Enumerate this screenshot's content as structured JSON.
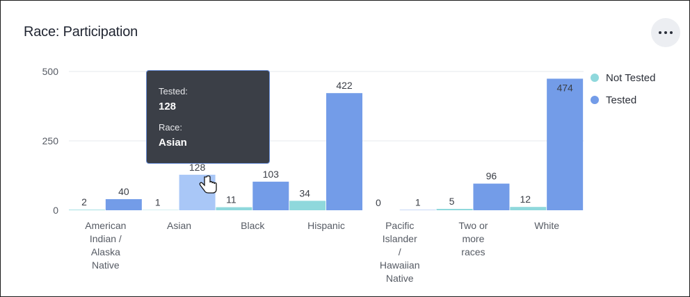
{
  "title": "Race: Participation",
  "more_icon": "more-horizontal-icon",
  "colors": {
    "not_tested": "#8fd8dc",
    "tested": "#739ce8",
    "tested_hover": "#a9c7f7",
    "grid": "#e6e8ec",
    "axis_text": "#555a63",
    "value_text": "#3a3e46"
  },
  "tooltip": {
    "tested_label": "Tested:",
    "tested_value": "128",
    "race_label": "Race:",
    "race_value": "Asian"
  },
  "chart_data": {
    "type": "bar",
    "title": "Race: Participation",
    "xlabel": "",
    "ylabel": "",
    "ylim": [
      0,
      500
    ],
    "yticks": [
      "0",
      "250",
      "500"
    ],
    "legend_position": "right",
    "categories": [
      [
        "American",
        "Indian /",
        "Alaska",
        "Native"
      ],
      [
        "Asian"
      ],
      [
        "Black"
      ],
      [
        "Hispanic"
      ],
      [
        "Pacific",
        "Islander",
        "/",
        "Hawaiian",
        "Native"
      ],
      [
        "Two or",
        "more",
        "races"
      ],
      [
        "White"
      ]
    ],
    "series": [
      {
        "name": "Not Tested",
        "values": [
          2,
          1,
          11,
          34,
          0,
          5,
          12
        ]
      },
      {
        "name": "Tested",
        "values": [
          40,
          128,
          103,
          422,
          1,
          96,
          474
        ]
      }
    ]
  }
}
